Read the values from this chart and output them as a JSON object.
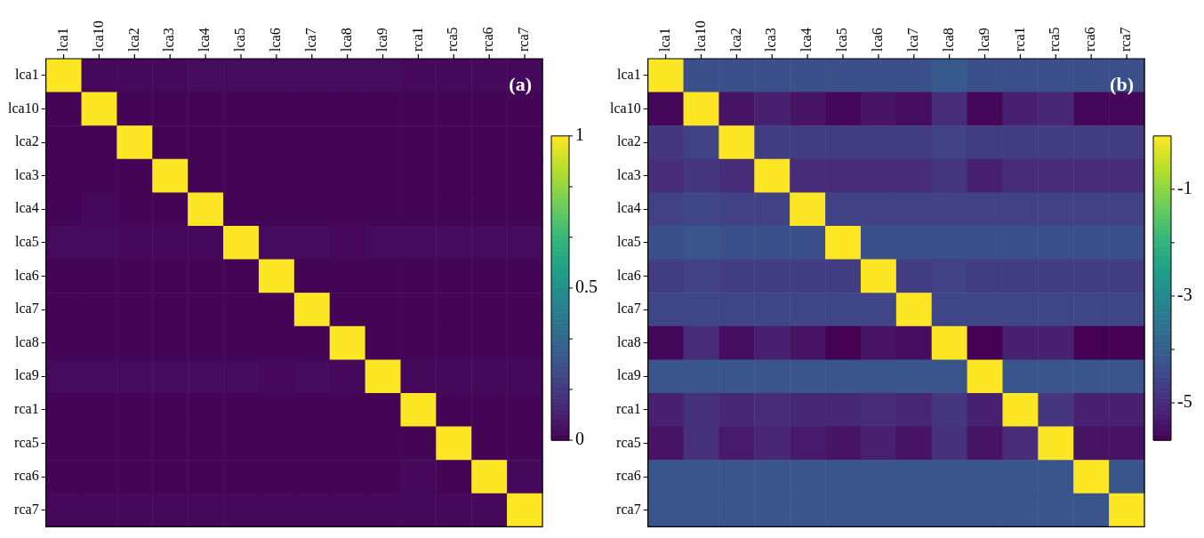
{
  "chart_data": [
    {
      "type": "heatmap",
      "annotations": [
        "(a)"
      ],
      "categories": [
        "lca1",
        "lca10",
        "lca2",
        "lca3",
        "lca4",
        "lca5",
        "lca6",
        "lca7",
        "lca8",
        "lca9",
        "rca1",
        "rca5",
        "rca6",
        "rca7"
      ],
      "y_categories": [
        "lca1",
        "lca10",
        "lca2",
        "lca3",
        "lca4",
        "lca5",
        "lca6",
        "lca7",
        "lca8",
        "lca9",
        "rca1",
        "rca5",
        "rca6",
        "rca7"
      ],
      "cells": [
        [
          1,
          0.02,
          0.02,
          0.02,
          0.03,
          0.03,
          0.03,
          0.03,
          0.03,
          0.03,
          0.02,
          0.02,
          0.02,
          0.02
        ],
        [
          0.01,
          1,
          0.01,
          0.01,
          0.01,
          0.01,
          0.01,
          0.01,
          0.01,
          0.01,
          0.01,
          0.01,
          0.01,
          0.01
        ],
        [
          0.01,
          0.01,
          1,
          0.01,
          0.01,
          0.01,
          0.01,
          0.01,
          0.01,
          0.01,
          0.01,
          0.01,
          0.01,
          0.01
        ],
        [
          0.01,
          0.01,
          0.01,
          1,
          0.01,
          0.01,
          0.01,
          0.01,
          0.01,
          0.01,
          0.01,
          0.01,
          0.01,
          0.01
        ],
        [
          0.01,
          0.02,
          0.01,
          0.01,
          1,
          0.01,
          0.01,
          0.01,
          0.01,
          0.01,
          0.01,
          0.01,
          0.01,
          0.01
        ],
        [
          0.03,
          0.03,
          0.02,
          0.02,
          0.02,
          1,
          0.03,
          0.03,
          0.02,
          0.03,
          0.03,
          0.03,
          0.03,
          0.03
        ],
        [
          0.01,
          0.01,
          0.01,
          0.01,
          0.01,
          0.01,
          1,
          0.01,
          0.01,
          0.01,
          0.01,
          0.01,
          0.01,
          0.01
        ],
        [
          0.01,
          0.01,
          0.01,
          0.01,
          0.01,
          0.01,
          0.01,
          1,
          0.01,
          0.01,
          0.01,
          0.01,
          0.01,
          0.01
        ],
        [
          0.01,
          0.01,
          0.01,
          0.01,
          0.01,
          0.01,
          0.01,
          0.01,
          1,
          0.01,
          0.01,
          0.01,
          0.01,
          0.01
        ],
        [
          0.03,
          0.03,
          0.03,
          0.03,
          0.03,
          0.03,
          0.02,
          0.03,
          0.02,
          1,
          0.02,
          0.02,
          0.02,
          0.02
        ],
        [
          0.01,
          0.01,
          0.01,
          0.01,
          0.01,
          0.01,
          0.01,
          0.01,
          0.01,
          0.01,
          1,
          0.01,
          0.01,
          0.01
        ],
        [
          0.01,
          0.01,
          0.01,
          0.01,
          0.01,
          0.01,
          0.01,
          0.01,
          0.01,
          0.01,
          0.01,
          1,
          0.01,
          0.01
        ],
        [
          0.01,
          0.01,
          0.01,
          0.01,
          0.01,
          0.01,
          0.01,
          0.01,
          0.01,
          0.01,
          0.02,
          0.01,
          1,
          0.02
        ],
        [
          0.02,
          0.02,
          0.02,
          0.02,
          0.02,
          0.02,
          0.02,
          0.02,
          0.02,
          0.02,
          0.02,
          0.02,
          0.02,
          1
        ]
      ],
      "clim": [
        0,
        1
      ],
      "cticks": [
        0,
        {
          "value": 0.167,
          "label": null
        },
        {
          "value": 0.333,
          "label": null
        },
        0.5,
        {
          "value": 0.667,
          "label": null
        },
        {
          "value": 0.833,
          "label": null
        },
        1
      ]
    },
    {
      "type": "heatmap",
      "annotations": [
        "(b)"
      ],
      "categories": [
        "lca1",
        "lca10",
        "lca2",
        "lca3",
        "lca4",
        "lca5",
        "lca6",
        "lca7",
        "lca8",
        "lca9",
        "rca1",
        "rca5",
        "rca6",
        "rca7"
      ],
      "y_categories": [
        "lca1",
        "lca10",
        "lca2",
        "lca3",
        "lca4",
        "lca5",
        "lca6",
        "lca7",
        "lca8",
        "lca9",
        "rca1",
        "rca5",
        "rca6",
        "rca7"
      ],
      "cells": [
        [
          0,
          -4.3,
          -4.3,
          -4.3,
          -4.3,
          -4.3,
          -4.3,
          -4.3,
          -4.1,
          -4.3,
          -4.3,
          -4.3,
          -4.3,
          -4.3
        ],
        [
          -5.6,
          0,
          -5.4,
          -5.2,
          -5.4,
          -5.6,
          -5.4,
          -5.5,
          -5.0,
          -5.6,
          -5.2,
          -5.1,
          -5.6,
          -5.6
        ],
        [
          -4.8,
          -4.6,
          0,
          -4.7,
          -4.7,
          -4.7,
          -4.7,
          -4.7,
          -4.6,
          -4.7,
          -4.7,
          -4.7,
          -4.7,
          -4.7
        ],
        [
          -5.0,
          -4.8,
          -5.0,
          0,
          -5.0,
          -5.0,
          -5.0,
          -5.0,
          -4.8,
          -5.2,
          -5.0,
          -5.0,
          -5.0,
          -5.0
        ],
        [
          -4.6,
          -4.5,
          -4.6,
          -4.6,
          0,
          -4.6,
          -4.6,
          -4.6,
          -4.6,
          -4.6,
          -4.6,
          -4.6,
          -4.6,
          -4.6
        ],
        [
          -4.3,
          -4.2,
          -4.3,
          -4.3,
          -4.3,
          0,
          -4.3,
          -4.3,
          -4.3,
          -4.3,
          -4.3,
          -4.3,
          -4.3,
          -4.3
        ],
        [
          -4.7,
          -4.6,
          -4.7,
          -4.7,
          -4.7,
          -4.7,
          0,
          -4.7,
          -4.6,
          -4.7,
          -4.7,
          -4.7,
          -4.7,
          -4.7
        ],
        [
          -4.5,
          -4.5,
          -4.5,
          -4.5,
          -4.5,
          -4.5,
          -4.5,
          0,
          -4.5,
          -4.5,
          -4.5,
          -4.5,
          -4.5,
          -4.5
        ],
        [
          -5.6,
          -5.0,
          -5.5,
          -5.2,
          -5.4,
          -5.7,
          -5.4,
          -5.5,
          0,
          -5.7,
          -5.2,
          -5.2,
          -5.7,
          -5.7
        ],
        [
          -4.2,
          -4.2,
          -4.2,
          -4.2,
          -4.2,
          -4.2,
          -4.2,
          -4.2,
          -4.2,
          0,
          -4.2,
          -4.2,
          -4.2,
          -4.2
        ],
        [
          -5.2,
          -4.9,
          -5.1,
          -5.0,
          -5.1,
          -5.1,
          -5.0,
          -5.1,
          -4.8,
          -5.2,
          0,
          -4.8,
          -5.2,
          -5.2
        ],
        [
          -5.4,
          -4.9,
          -5.3,
          -5.1,
          -5.3,
          -5.4,
          -5.2,
          -5.4,
          -4.9,
          -5.4,
          -5.0,
          0,
          -5.4,
          -5.4
        ],
        [
          -4.2,
          -4.2,
          -4.2,
          -4.2,
          -4.2,
          -4.2,
          -4.2,
          -4.2,
          -4.2,
          -4.2,
          -4.2,
          -4.2,
          0,
          -4.2
        ],
        [
          -4.2,
          -4.2,
          -4.2,
          -4.2,
          -4.2,
          -4.2,
          -4.2,
          -4.2,
          -4.2,
          -4.2,
          -4.2,
          -4.2,
          -4.2,
          0
        ]
      ],
      "clim": [
        -5.7,
        0
      ],
      "cticks": [
        -5,
        {
          "value": -4,
          "label": null
        },
        -3,
        {
          "value": -2,
          "label": null
        },
        -1
      ]
    }
  ]
}
